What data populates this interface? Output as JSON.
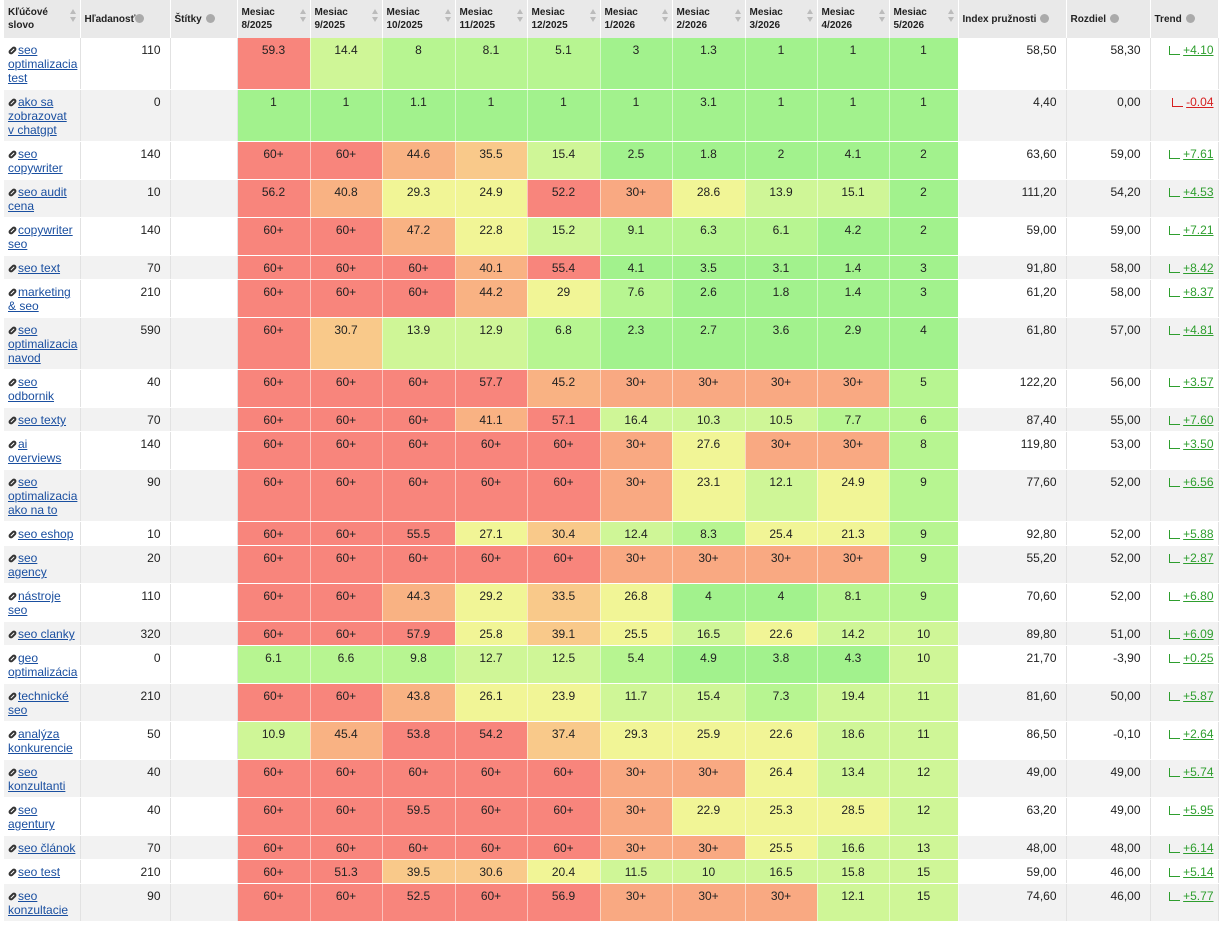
{
  "table": {
    "headers": [
      "Kľúčové slovo",
      "Hľadanosť",
      "Štítky",
      "Mesiac 8/2025",
      "Mesiac 9/2025",
      "Mesiac 10/2025",
      "Mesiac 11/2025",
      "Mesiac 12/2025",
      "Mesiac 1/2026",
      "Mesiac 2/2026",
      "Mesiac 3/2026",
      "Mesiac 4/2026",
      "Mesiac 5/2026",
      "Index pružnosti",
      "Rozdiel",
      "Trend"
    ],
    "rows": [
      {
        "keyword": "seo optimalizacia test",
        "volume": 110,
        "months": [
          59.3,
          14.4,
          8,
          8.1,
          5.1,
          3,
          1.3,
          1,
          1,
          1
        ],
        "index": "58,50",
        "diff": "58,30",
        "trend": "+4.10"
      },
      {
        "keyword": "ako sa zobrazovat v chatgpt",
        "volume": 0,
        "months": [
          1,
          1,
          1.1,
          1,
          1,
          1,
          3.1,
          1,
          1,
          1
        ],
        "index": "4,40",
        "diff": "0,00",
        "trend": "-0.04"
      },
      {
        "keyword": "seo copywriter",
        "volume": 140,
        "months": [
          "60+",
          "60+",
          44.6,
          35.5,
          15.4,
          2.5,
          1.8,
          2,
          4.1,
          2
        ],
        "index": "63,60",
        "diff": "59,00",
        "trend": "+7.61"
      },
      {
        "keyword": "seo audit cena",
        "volume": 10,
        "months": [
          56.2,
          40.8,
          29.3,
          24.9,
          52.2,
          "30+",
          28.6,
          13.9,
          15.1,
          2
        ],
        "index": "111,20",
        "diff": "54,20",
        "trend": "+4.53"
      },
      {
        "keyword": "copywriter seo",
        "volume": 140,
        "months": [
          "60+",
          "60+",
          47.2,
          22.8,
          15.2,
          9.1,
          6.3,
          6.1,
          4.2,
          2
        ],
        "index": "59,00",
        "diff": "59,00",
        "trend": "+7.21"
      },
      {
        "keyword": "seo text",
        "volume": 70,
        "months": [
          "60+",
          "60+",
          "60+",
          40.1,
          55.4,
          4.1,
          3.5,
          3.1,
          1.4,
          3
        ],
        "index": "91,80",
        "diff": "58,00",
        "trend": "+8.42"
      },
      {
        "keyword": "marketing & seo",
        "volume": 210,
        "months": [
          "60+",
          "60+",
          "60+",
          44.2,
          29,
          7.6,
          2.6,
          1.8,
          1.4,
          3
        ],
        "index": "61,20",
        "diff": "58,00",
        "trend": "+8.37"
      },
      {
        "keyword": "seo optimalizacia navod",
        "volume": 590,
        "months": [
          "60+",
          30.7,
          13.9,
          12.9,
          6.8,
          2.3,
          2.7,
          3.6,
          2.9,
          4
        ],
        "index": "61,80",
        "diff": "57,00",
        "trend": "+4.81"
      },
      {
        "keyword": "seo odbornik",
        "volume": 40,
        "months": [
          "60+",
          "60+",
          "60+",
          57.7,
          45.2,
          "30+",
          "30+",
          "30+",
          "30+",
          5
        ],
        "index": "122,20",
        "diff": "56,00",
        "trend": "+3.57"
      },
      {
        "keyword": "seo texty",
        "volume": 70,
        "months": [
          "60+",
          "60+",
          "60+",
          41.1,
          57.1,
          16.4,
          10.3,
          10.5,
          7.7,
          6
        ],
        "index": "87,40",
        "diff": "55,00",
        "trend": "+7.60"
      },
      {
        "keyword": "ai overviews",
        "volume": 140,
        "months": [
          "60+",
          "60+",
          "60+",
          "60+",
          "60+",
          "30+",
          27.6,
          "30+",
          "30+",
          8
        ],
        "index": "119,80",
        "diff": "53,00",
        "trend": "+3.50"
      },
      {
        "keyword": "seo optimalizacia ako na to",
        "volume": 90,
        "months": [
          "60+",
          "60+",
          "60+",
          "60+",
          "60+",
          "30+",
          23.1,
          12.1,
          24.9,
          9
        ],
        "index": "77,60",
        "diff": "52,00",
        "trend": "+6.56"
      },
      {
        "keyword": "seo eshop",
        "volume": 10,
        "months": [
          "60+",
          "60+",
          55.5,
          27.1,
          30.4,
          12.4,
          8.3,
          25.4,
          21.3,
          9
        ],
        "index": "92,80",
        "diff": "52,00",
        "trend": "+5.88"
      },
      {
        "keyword": "seo agency",
        "volume": 20,
        "months": [
          "60+",
          "60+",
          "60+",
          "60+",
          "60+",
          "30+",
          "30+",
          "30+",
          "30+",
          9
        ],
        "index": "55,20",
        "diff": "52,00",
        "trend": "+2.87"
      },
      {
        "keyword": "nástroje seo",
        "volume": 110,
        "months": [
          "60+",
          "60+",
          44.3,
          29.2,
          33.5,
          26.8,
          4,
          4,
          8.1,
          9
        ],
        "index": "70,60",
        "diff": "52,00",
        "trend": "+6.80"
      },
      {
        "keyword": "seo clanky",
        "volume": 320,
        "months": [
          "60+",
          "60+",
          57.9,
          25.8,
          39.1,
          25.5,
          16.5,
          22.6,
          14.2,
          10
        ],
        "index": "89,80",
        "diff": "51,00",
        "trend": "+6.09"
      },
      {
        "keyword": "geo optimalizácia",
        "volume": 0,
        "months": [
          6.1,
          6.6,
          9.8,
          12.7,
          12.5,
          5.4,
          4.9,
          3.8,
          4.3,
          10
        ],
        "index": "21,70",
        "diff": "-3,90",
        "trend": "+0.25"
      },
      {
        "keyword": "technické seo",
        "volume": 210,
        "months": [
          "60+",
          "60+",
          43.8,
          26.1,
          23.9,
          11.7,
          15.4,
          7.3,
          19.4,
          11
        ],
        "index": "81,60",
        "diff": "50,00",
        "trend": "+5.87"
      },
      {
        "keyword": "analýza konkurencie",
        "volume": 50,
        "months": [
          10.9,
          45.4,
          53.8,
          54.2,
          37.4,
          29.3,
          25.9,
          22.6,
          18.6,
          11
        ],
        "index": "86,50",
        "diff": "-0,10",
        "trend": "+2.64"
      },
      {
        "keyword": "seo konzultanti",
        "volume": 40,
        "months": [
          "60+",
          "60+",
          "60+",
          "60+",
          "60+",
          "30+",
          "30+",
          26.4,
          13.4,
          12
        ],
        "index": "49,00",
        "diff": "49,00",
        "trend": "+5.74"
      },
      {
        "keyword": "seo agentury",
        "volume": 40,
        "months": [
          "60+",
          "60+",
          59.5,
          "60+",
          "60+",
          "30+",
          22.9,
          25.3,
          28.5,
          12
        ],
        "index": "63,20",
        "diff": "49,00",
        "trend": "+5.95"
      },
      {
        "keyword": "seo článok",
        "volume": 70,
        "months": [
          "60+",
          "60+",
          "60+",
          "60+",
          "60+",
          "30+",
          "30+",
          25.5,
          16.6,
          13
        ],
        "index": "48,00",
        "diff": "48,00",
        "trend": "+6.14"
      },
      {
        "keyword": "seo test",
        "volume": 210,
        "months": [
          "60+",
          51.3,
          39.5,
          30.6,
          20.4,
          11.5,
          10,
          16.5,
          15.8,
          15
        ],
        "index": "59,00",
        "diff": "46,00",
        "trend": "+5.14"
      },
      {
        "keyword": "seo konzultacie",
        "volume": 90,
        "months": [
          "60+",
          "60+",
          52.5,
          "60+",
          56.9,
          "30+",
          "30+",
          "30+",
          12.1,
          15
        ],
        "index": "74,60",
        "diff": "46,00",
        "trend": "+5.77"
      }
    ]
  }
}
